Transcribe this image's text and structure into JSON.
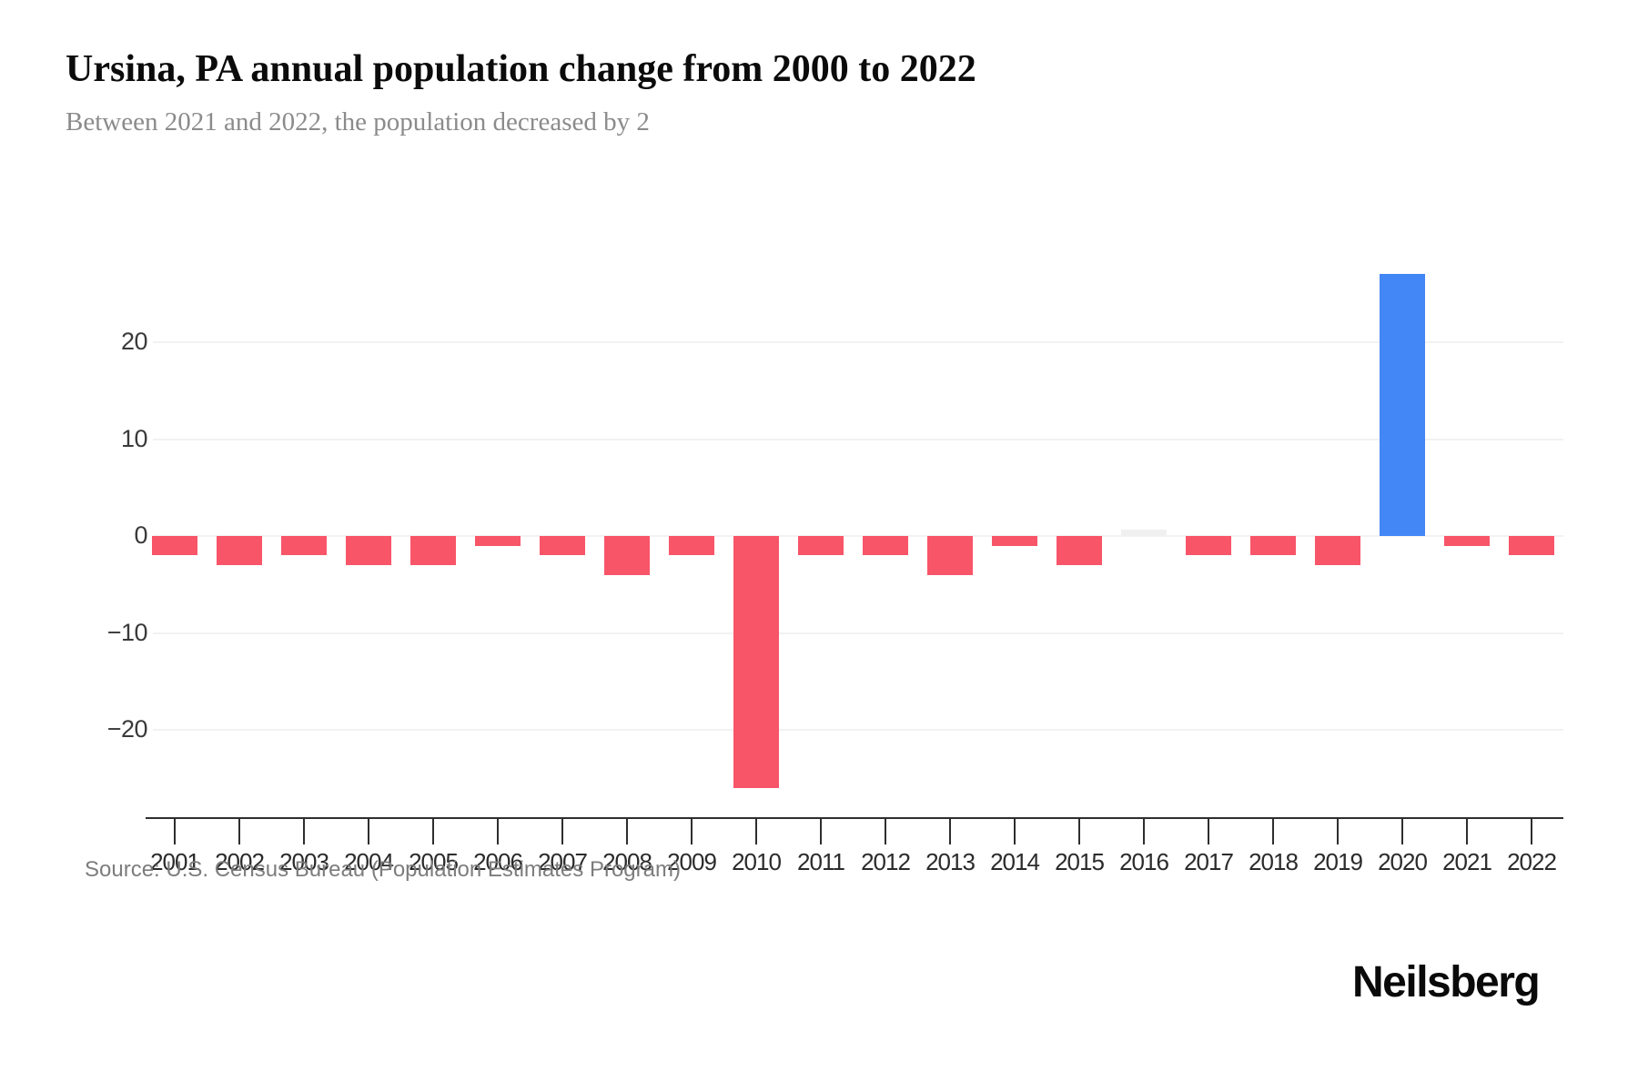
{
  "header": {
    "title": "Ursina, PA annual population change from 2000 to 2022",
    "subtitle": "Between 2021 and 2022, the population decreased by 2"
  },
  "footer": {
    "source": "Source: U.S. Census Bureau (Population Estimates Program)",
    "brand": "Neilsberg"
  },
  "chart_data": {
    "type": "bar",
    "title": "Ursina, PA annual population change from 2000 to 2022",
    "xlabel": "",
    "ylabel": "",
    "categories": [
      "2001",
      "2002",
      "2003",
      "2004",
      "2005",
      "2006",
      "2007",
      "2008",
      "2009",
      "2010",
      "2011",
      "2012",
      "2013",
      "2014",
      "2015",
      "2016",
      "2017",
      "2018",
      "2019",
      "2020",
      "2021",
      "2022"
    ],
    "values": [
      -2,
      -3,
      -2,
      -3,
      -3,
      -1,
      -2,
      -4,
      -2,
      -26,
      -2,
      -2,
      -4,
      -1,
      -3,
      0,
      -2,
      -2,
      -3,
      27,
      -1,
      -2
    ],
    "yticks": [
      20,
      10,
      0,
      -10,
      -20
    ],
    "ylim": [
      -26,
      27
    ],
    "grid": true,
    "legend": "none",
    "colors": {
      "negative": "#f85569",
      "positive": "#4386f5",
      "zero": "#f0f0f0",
      "gridline": "#f2f2f2",
      "axis": "#2e2e2e"
    }
  }
}
